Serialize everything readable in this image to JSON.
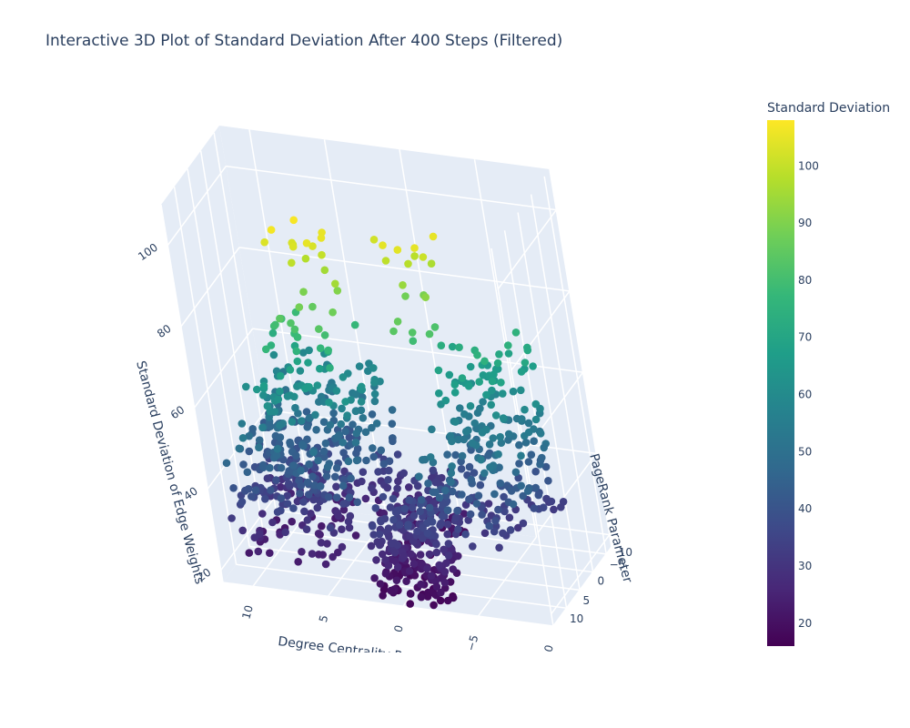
{
  "chart_data": {
    "type": "scatter",
    "title": "Interactive 3D Plot of Standard Deviation After 400 Steps (Filtered)",
    "xlabel": "Degree Centrality Parameter",
    "ylabel": "PageRank Parameter",
    "zlabel": "Standard Deviation of Edge Weights",
    "xlim": [
      -10,
      12
    ],
    "ylim": [
      -10,
      12
    ],
    "zlim": [
      17,
      110
    ],
    "x_ticks": [
      "10",
      "5",
      "0",
      "−5",
      "−10"
    ],
    "y_ticks": [
      "10",
      "−5",
      "0",
      "5",
      "10"
    ],
    "z_ticks": [
      "20",
      "40",
      "60",
      "80",
      "100"
    ],
    "grid": true,
    "colorscale": "Viridis",
    "colorbar": {
      "title": "Standard Deviation",
      "range": [
        16,
        108
      ],
      "ticks": [
        "20",
        "30",
        "40",
        "50",
        "60",
        "70",
        "80",
        "90",
        "100"
      ],
      "colors": [
        "#440154",
        "#482878",
        "#3e4989",
        "#31688e",
        "#26828e",
        "#1f9e89",
        "#35b779",
        "#6ece58",
        "#b5de2b",
        "#fde725"
      ]
    },
    "clusters": [
      {
        "n": 260,
        "x": [
          4,
          11
        ],
        "y": [
          -10,
          10
        ],
        "z": [
          22,
          48
        ]
      },
      {
        "n": 160,
        "x": [
          2,
          10
        ],
        "y": [
          -10,
          10
        ],
        "z": [
          40,
          62
        ]
      },
      {
        "n": 90,
        "x": [
          -1,
          4
        ],
        "y": [
          3,
          11
        ],
        "z": [
          17,
          35
        ]
      },
      {
        "n": 220,
        "x": [
          -3,
          2
        ],
        "y": [
          -10,
          -2
        ],
        "z": [
          17,
          38
        ]
      },
      {
        "n": 180,
        "x": [
          -9,
          -2
        ],
        "y": [
          -10,
          6
        ],
        "z": [
          30,
          55
        ]
      },
      {
        "n": 80,
        "x": [
          -9,
          -3
        ],
        "y": [
          -4,
          6
        ],
        "z": [
          52,
          75
        ]
      },
      {
        "n": 40,
        "x": [
          2,
          8
        ],
        "y": [
          -10,
          0
        ],
        "z": [
          60,
          80
        ]
      },
      {
        "n": 24,
        "x": [
          1,
          6
        ],
        "y": [
          -10,
          -6
        ],
        "z": [
          80,
          108
        ]
      },
      {
        "n": 20,
        "x": [
          -5,
          0
        ],
        "y": [
          -8,
          -2
        ],
        "z": [
          78,
          106
        ]
      }
    ]
  }
}
